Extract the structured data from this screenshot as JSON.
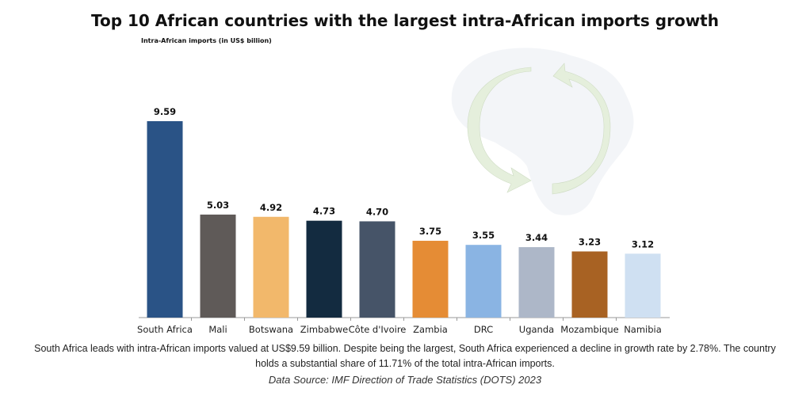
{
  "chart_data": {
    "type": "bar",
    "title": "Top 10 African countries with the largest intra-African imports growth",
    "ylabel": "Intra-African imports (in US$ billion)",
    "xlabel": "",
    "categories": [
      "South Africa",
      "Mali",
      "Botswana",
      "Zimbabwe",
      "Côte d'Ivoire",
      "Zambia",
      "DRC",
      "Uganda",
      "Mozambique",
      "Namibia"
    ],
    "values": [
      9.59,
      5.03,
      4.92,
      4.73,
      4.7,
      3.75,
      3.55,
      3.44,
      3.23,
      3.12
    ],
    "value_labels": [
      "9.59",
      "5.03",
      "4.92",
      "4.73",
      "4.70",
      "3.75",
      "3.55",
      "3.44",
      "3.23",
      "3.12"
    ],
    "colors": [
      "#2a5386",
      "#5f5a58",
      "#f2b86b",
      "#132b40",
      "#465468",
      "#e58c35",
      "#8ab4e3",
      "#adb7c8",
      "#a86223",
      "#cfe0f2"
    ],
    "ylim": [
      0,
      9.59
    ],
    "grid": false
  },
  "note": "South Africa leads with intra-African imports valued at US$9.59 billion. Despite being the largest, South Africa experienced a decline in growth rate by 2.78%. The country holds a substantial share of 11.71% of the total intra-African imports.",
  "source": "Data Source: IMF Direction of Trade Statistics (DOTS) 2023"
}
